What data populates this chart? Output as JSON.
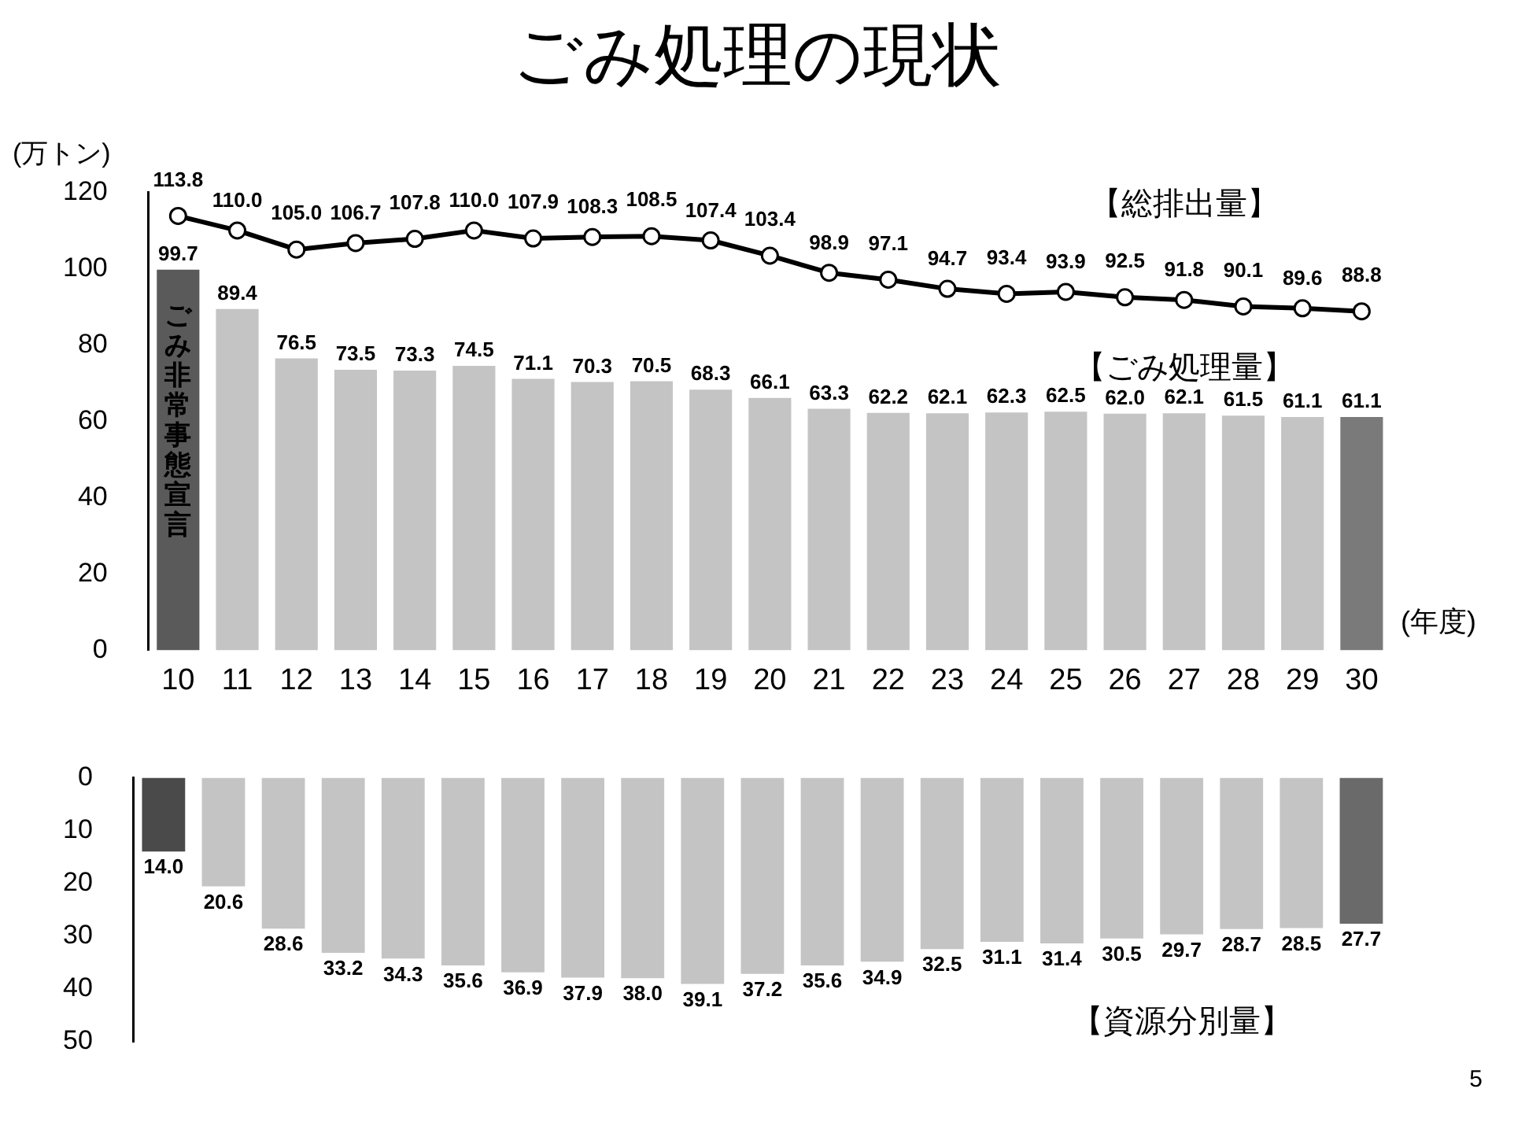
{
  "chart_data": [
    {
      "type": "bar",
      "title": "ごみ処理の現状",
      "ylabel": "(万トン)",
      "xlabel": "(年度)",
      "categories": [
        "10",
        "11",
        "12",
        "13",
        "14",
        "15",
        "16",
        "17",
        "18",
        "19",
        "20",
        "21",
        "22",
        "23",
        "24",
        "25",
        "26",
        "27",
        "28",
        "29",
        "30"
      ],
      "series": [
        {
          "name": "【ごみ処理量】",
          "colors": [
            "#5a5a5a",
            "#c4c4c4",
            "#c4c4c4",
            "#c4c4c4",
            "#c4c4c4",
            "#c4c4c4",
            "#c4c4c4",
            "#c4c4c4",
            "#c4c4c4",
            "#c4c4c4",
            "#c4c4c4",
            "#c4c4c4",
            "#c4c4c4",
            "#c4c4c4",
            "#c4c4c4",
            "#c4c4c4",
            "#c4c4c4",
            "#c4c4c4",
            "#c4c4c4",
            "#c4c4c4",
            "#7a7a7a"
          ],
          "values": [
            99.7,
            89.4,
            76.5,
            73.5,
            73.3,
            74.5,
            71.1,
            70.3,
            70.5,
            68.3,
            66.1,
            63.3,
            62.2,
            62.1,
            62.3,
            62.5,
            62.0,
            62.1,
            61.5,
            61.1,
            61.1
          ],
          "value_labels": [
            "99.7",
            "89.4",
            "76.5",
            "73.5",
            "73.3",
            "74.5",
            "71.1",
            "70.3",
            "70.5",
            "68.3",
            "66.1",
            "63.3",
            "62.2",
            "62.1",
            "62.3",
            "62.5",
            "62.0",
            "62.1",
            "61.5",
            "61.1",
            "61.1"
          ]
        },
        {
          "type": "line",
          "name": "【総排出量】",
          "color": "#000000",
          "values": [
            113.8,
            110.0,
            105.0,
            106.7,
            107.8,
            110.0,
            107.9,
            108.3,
            108.5,
            107.4,
            103.4,
            98.9,
            97.1,
            94.7,
            93.4,
            93.9,
            92.5,
            91.8,
            90.1,
            89.6,
            88.8
          ],
          "value_labels": [
            "113.8",
            "110.0",
            "105.0",
            "106.7",
            "107.8",
            "110.0",
            "107.9",
            "108.3",
            "108.5",
            "107.4",
            "103.4",
            "98.9",
            "97.1",
            "94.7",
            "93.4",
            "93.9",
            "92.5",
            "91.8",
            "90.1",
            "89.6",
            "88.8"
          ]
        }
      ],
      "ylim": [
        0,
        120
      ],
      "yticks": [
        0,
        20,
        40,
        60,
        80,
        100,
        120
      ],
      "grid": false,
      "legend": false,
      "marker": "circle",
      "annotations": [
        "ごみ非常事態宣言"
      ]
    },
    {
      "type": "bar",
      "categories": [
        "10",
        "11",
        "12",
        "13",
        "14",
        "15",
        "16",
        "17",
        "18",
        "19",
        "20",
        "21",
        "22",
        "23",
        "24",
        "25",
        "26",
        "27",
        "28",
        "29",
        "30"
      ],
      "series": [
        {
          "name": "【資源分別量】",
          "colors": [
            "#4a4a4a",
            "#c4c4c4",
            "#c4c4c4",
            "#c4c4c4",
            "#c4c4c4",
            "#c4c4c4",
            "#c4c4c4",
            "#c4c4c4",
            "#c4c4c4",
            "#c4c4c4",
            "#c4c4c4",
            "#c4c4c4",
            "#c4c4c4",
            "#c4c4c4",
            "#c4c4c4",
            "#c4c4c4",
            "#c4c4c4",
            "#c4c4c4",
            "#c4c4c4",
            "#c4c4c4",
            "#6a6a6a"
          ],
          "values": [
            14.0,
            20.6,
            28.6,
            33.2,
            34.3,
            35.6,
            36.9,
            37.9,
            38.0,
            39.1,
            37.2,
            35.6,
            34.9,
            32.5,
            31.1,
            31.4,
            30.5,
            29.7,
            28.7,
            28.5,
            27.7
          ],
          "value_labels": [
            "14.0",
            "20.6",
            "28.6",
            "33.2",
            "34.3",
            "35.6",
            "36.9",
            "37.9",
            "38.0",
            "39.1",
            "37.2",
            "35.6",
            "34.9",
            "32.5",
            "31.1",
            "31.4",
            "30.5",
            "29.7",
            "28.7",
            "28.5",
            "27.7"
          ]
        }
      ],
      "ylim": [
        50,
        0
      ],
      "yticks": [
        0,
        10,
        20,
        30,
        40,
        50
      ],
      "grid": false,
      "legend": false,
      "tick_labels": "y",
      "annotations": [
        "5"
      ]
    }
  ]
}
